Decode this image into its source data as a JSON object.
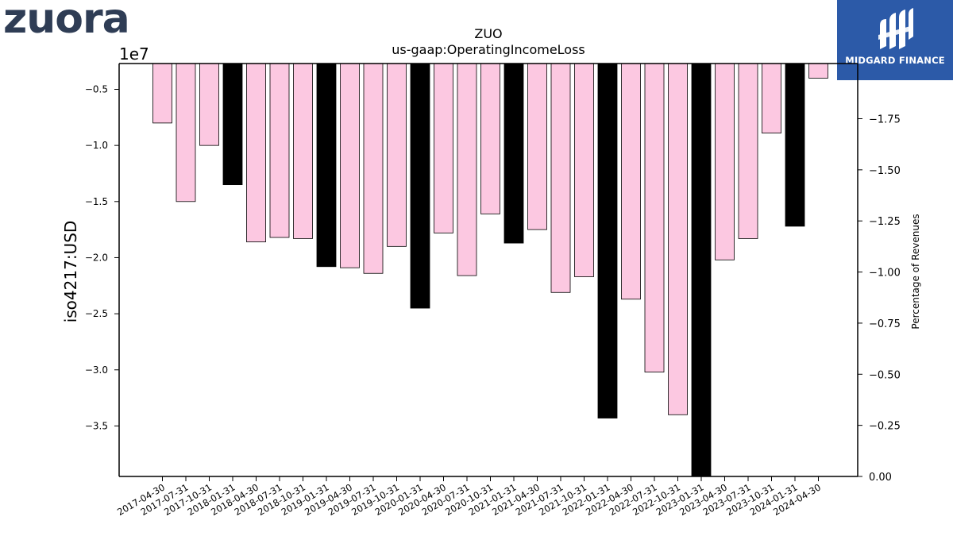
{
  "logos": {
    "left_text": "zuora",
    "right_text": "MIDGARD FINANCE"
  },
  "chart_data": {
    "type": "bar",
    "title": "ZUO",
    "subtitle": "us-gaap:OperatingIncomeLoss",
    "ylabel": "iso4217:USD",
    "y2label": "Percentage of Revenues",
    "offset_label": "1e7",
    "ylim": [
      -3.95,
      -0.27
    ],
    "y_ticks": [
      -0.5,
      -1.0,
      -1.5,
      -2.0,
      -2.5,
      -3.0,
      -3.5
    ],
    "y_tick_labels": [
      "−0.5",
      "−1.0",
      "−1.5",
      "−2.0",
      "−2.5",
      "−3.0",
      "−3.5"
    ],
    "y2lim": [
      0.0,
      2.02
    ],
    "y2_ticks": [
      1.75,
      1.5,
      1.25,
      1.0,
      0.75,
      0.5,
      0.25,
      0.0
    ],
    "y2_tick_labels": [
      "−1.75",
      "−1.50",
      "−1.25",
      "−1.00",
      "−0.75",
      "−0.50",
      "−0.25",
      "0.00"
    ],
    "categories": [
      "2017-04-30",
      "2017-07-31",
      "2017-10-31",
      "2018-01-31",
      "2018-04-30",
      "2018-07-31",
      "2018-10-31",
      "2019-01-31",
      "2019-04-30",
      "2019-07-31",
      "2019-10-31",
      "2020-01-31",
      "2020-04-30",
      "2020-07-31",
      "2020-10-31",
      "2021-01-31",
      "2021-04-30",
      "2021-07-31",
      "2021-10-31",
      "2022-01-31",
      "2022-04-30",
      "2022-07-31",
      "2022-10-31",
      "2023-01-31",
      "2023-04-30",
      "2023-07-31",
      "2023-10-31",
      "2024-01-31",
      "2024-04-30"
    ],
    "values": [
      -0.8,
      -1.5,
      -1.0,
      -1.35,
      -1.86,
      -1.82,
      -1.83,
      -2.08,
      -2.09,
      -2.14,
      -1.9,
      -2.45,
      -1.78,
      -2.16,
      -1.61,
      -1.87,
      -1.75,
      -2.31,
      -2.17,
      -3.43,
      -2.37,
      -3.02,
      -3.4,
      -3.95,
      -2.02,
      -1.83,
      -0.89,
      -1.72,
      -0.4
    ],
    "highlight": [
      false,
      false,
      false,
      true,
      false,
      false,
      false,
      true,
      false,
      false,
      false,
      true,
      false,
      false,
      false,
      true,
      false,
      false,
      false,
      true,
      false,
      false,
      false,
      true,
      false,
      false,
      false,
      true,
      false
    ],
    "colors": {
      "normal": "#fcc8e1",
      "highlight": "#000000",
      "edge": "#000000"
    },
    "grid": false,
    "legend": "none"
  }
}
